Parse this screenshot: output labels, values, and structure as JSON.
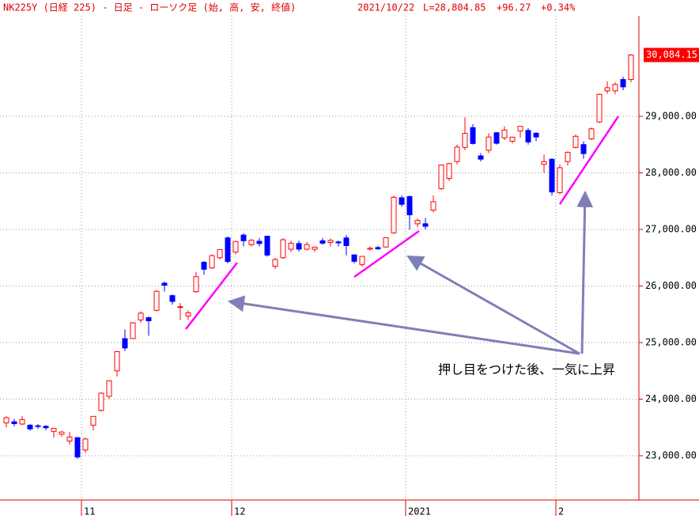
{
  "chart_data": {
    "type": "candlestick",
    "title": "NK225Y (日経 225) - 日足 - ローソク足 (始, 高, 安, 終値)",
    "info": [
      "2021/10/22",
      "L=28,804.85",
      "+96.27",
      "+0.34%"
    ],
    "annotation": "押し目をつけた後、一気に上昇",
    "last_price": {
      "value": 30084.15,
      "label": "30,084.15"
    },
    "up_color": "#ff0000",
    "down_color": "#0000ff",
    "grid": true,
    "ylim": [
      22217,
      30776
    ],
    "yticks": [
      {
        "value": 23000,
        "label": "23,000.00"
      },
      {
        "value": 24000,
        "label": "24,000.00"
      },
      {
        "value": 25000,
        "label": "25,000.00"
      },
      {
        "value": 26000,
        "label": "26,000.00"
      },
      {
        "value": 27000,
        "label": "27,000.00"
      },
      {
        "value": 28000,
        "label": "28,000.00"
      },
      {
        "value": 29000,
        "label": "29,000.00"
      }
    ],
    "categories": [
      null,
      null,
      null,
      null,
      null,
      null,
      null,
      null,
      null,
      null,
      "11",
      null,
      null,
      null,
      null,
      null,
      null,
      null,
      null,
      null,
      null,
      null,
      null,
      null,
      null,
      null,
      null,
      null,
      null,
      "12",
      null,
      null,
      null,
      null,
      null,
      null,
      null,
      null,
      null,
      null,
      null,
      null,
      null,
      null,
      null,
      null,
      null,
      null,
      null,
      null,
      null,
      "2021",
      null,
      null,
      null,
      null,
      null,
      null,
      null,
      null,
      null,
      null,
      null,
      null,
      null,
      null,
      null,
      null,
      null,
      null,
      "2",
      null,
      null,
      null,
      null,
      null,
      null,
      null,
      null,
      null
    ],
    "open": [
      23580,
      23600,
      23560,
      23540,
      23530,
      23520,
      23430,
      23380,
      23260,
      23320,
      23100,
      23540,
      23800,
      24050,
      24500,
      25070,
      25070,
      25400,
      25440,
      25570,
      26050,
      25830,
      25620,
      25470,
      25900,
      26420,
      26320,
      26500,
      26850,
      26600,
      26900,
      26730,
      26790,
      26880,
      26350,
      26500,
      26650,
      26750,
      26650,
      26650,
      26800,
      26770,
      26780,
      26850,
      26550,
      26380,
      26650,
      26680,
      26690,
      26940,
      27560,
      27580,
      27100,
      27100,
      27340,
      27720,
      27900,
      28200,
      28450,
      28800,
      28300,
      28400,
      28710,
      28620,
      28560,
      28740,
      28750,
      28700,
      28150,
      28240,
      27650,
      28200,
      28450,
      28500,
      28600,
      28900,
      29450,
      29450,
      29650,
      29650
    ],
    "high": [
      23700,
      23650,
      23700,
      23560,
      23560,
      23540,
      23490,
      23440,
      23420,
      23320,
      23320,
      23700,
      24120,
      24330,
      24850,
      25230,
      25360,
      25550,
      25460,
      25930,
      26080,
      25850,
      25700,
      25570,
      26250,
      26440,
      26560,
      26650,
      26880,
      26800,
      26930,
      26830,
      26850,
      26890,
      26500,
      26850,
      26800,
      26800,
      26780,
      26700,
      26850,
      26840,
      26800,
      26900,
      26560,
      26530,
      26700,
      26710,
      26860,
      27600,
      27600,
      27600,
      27200,
      27200,
      27600,
      28140,
      28180,
      28500,
      28980,
      28860,
      28350,
      28700,
      28720,
      28820,
      28640,
      28830,
      28790,
      28720,
      28320,
      28260,
      28150,
      28380,
      28680,
      28560,
      28800,
      29400,
      29620,
      29600,
      29700,
      30100
    ],
    "low": [
      23500,
      23520,
      23540,
      23440,
      23470,
      23450,
      23320,
      23340,
      23200,
      22950,
      23050,
      23450,
      23780,
      24000,
      24400,
      24850,
      25060,
      25350,
      25120,
      25550,
      25900,
      25670,
      25400,
      25400,
      25880,
      26200,
      26300,
      26470,
      26400,
      26560,
      26700,
      26700,
      26700,
      26520,
      26300,
      26480,
      26600,
      26610,
      26630,
      26600,
      26730,
      26700,
      26700,
      26540,
      26400,
      26340,
      26630,
      26640,
      26680,
      26920,
      27400,
      27000,
      27040,
      27000,
      27300,
      27700,
      27860,
      28150,
      28400,
      28500,
      28200,
      28350,
      28500,
      28580,
      28520,
      28620,
      28500,
      28560,
      28000,
      27600,
      27620,
      28130,
      28430,
      28250,
      28580,
      28880,
      29400,
      29390,
      29460,
      29600
    ],
    "close": [
      23671,
      23567,
      23639,
      23474,
      23516,
      23494,
      23485,
      23418,
      23331,
      22977,
      23295,
      23695,
      24105,
      24325,
      24839,
      24905,
      25349,
      25520,
      25385,
      25906,
      26014,
      25728,
      25634,
      25527,
      26165,
      26296,
      26537,
      26644,
      26433,
      26787,
      26800,
      26809,
      26751,
      26547,
      26467,
      26817,
      26756,
      26652,
      26732,
      26687,
      26757,
      26806,
      26763,
      26714,
      26436,
      26524,
      26668,
      26656,
      26854,
      27568,
      27444,
      27258,
      27158,
      27055,
      27490,
      28139,
      28164,
      28456,
      28698,
      28519,
      28242,
      28633,
      28523,
      28756,
      28631,
      28822,
      28546,
      28635,
      28197,
      27663,
      28091,
      28362,
      28646,
      28341,
      28779,
      29388,
      29505,
      29562,
      29520,
      30084
    ]
  }
}
